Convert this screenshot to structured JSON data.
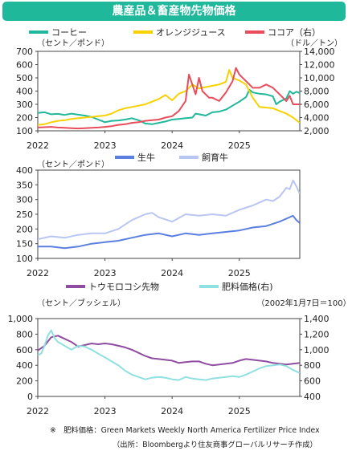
{
  "title": "農産品＆畜産物先物価格",
  "footnote": "※　肥料価格：Green Markets  Weekly North  America Fertilizer  Price Index",
  "source": "（出所：Bloombergより住友商事グローバルリサーチ作成）",
  "chart_data": [
    {
      "type": "line",
      "x_ticks": [
        "2022",
        "2023",
        "2024",
        "2025"
      ],
      "ylabel": "（セント／ポンド）",
      "y2label": "（ドル／トン）",
      "ylim": [
        100,
        700
      ],
      "y_ticks": [
        100,
        200,
        300,
        400,
        500,
        600,
        700
      ],
      "y2lim": [
        2000,
        14000
      ],
      "y2_ticks": [
        "2,000",
        "4,000",
        "6,000",
        "8,000",
        "10,000",
        "12,000",
        "14,000"
      ],
      "legend_position": "top",
      "grid": false,
      "series": [
        {
          "name": "コーヒー",
          "color": "#1fb89a",
          "axis": "left",
          "x": [
            2022.0,
            2022.1,
            2022.2,
            2022.3,
            2022.4,
            2022.5,
            2022.6,
            2022.7,
            2022.8,
            2022.9,
            2023.0,
            2023.1,
            2023.2,
            2023.3,
            2023.4,
            2023.5,
            2023.6,
            2023.7,
            2023.8,
            2023.9,
            2024.0,
            2024.1,
            2024.2,
            2024.3,
            2024.35,
            2024.4,
            2024.5,
            2024.6,
            2024.7,
            2024.8,
            2024.9,
            2025.0,
            2025.1,
            2025.15,
            2025.2,
            2025.3,
            2025.4,
            2025.5,
            2025.55,
            2025.6,
            2025.7,
            2025.75,
            2025.8,
            2025.85,
            2025.9
          ],
          "values": [
            235,
            240,
            225,
            228,
            220,
            230,
            222,
            215,
            205,
            185,
            165,
            175,
            178,
            185,
            195,
            180,
            155,
            150,
            160,
            170,
            185,
            190,
            195,
            200,
            230,
            225,
            215,
            240,
            245,
            260,
            290,
            320,
            355,
            410,
            390,
            380,
            375,
            360,
            300,
            320,
            345,
            400,
            380,
            395,
            385
          ]
        },
        {
          "name": "オレンジジュース",
          "color": "#f7d100",
          "axis": "left",
          "x": [
            2022.0,
            2022.1,
            2022.2,
            2022.3,
            2022.4,
            2022.5,
            2022.6,
            2022.7,
            2022.8,
            2022.9,
            2023.0,
            2023.1,
            2023.2,
            2023.3,
            2023.4,
            2023.5,
            2023.6,
            2023.7,
            2023.8,
            2023.9,
            2024.0,
            2024.1,
            2024.2,
            2024.3,
            2024.4,
            2024.5,
            2024.6,
            2024.7,
            2024.8,
            2024.85,
            2024.9,
            2025.0,
            2025.1,
            2025.2,
            2025.3,
            2025.4,
            2025.5,
            2025.6,
            2025.7,
            2025.8,
            2025.9
          ],
          "values": [
            145,
            150,
            165,
            175,
            180,
            190,
            195,
            200,
            205,
            210,
            215,
            230,
            255,
            270,
            280,
            290,
            300,
            320,
            340,
            370,
            330,
            380,
            400,
            450,
            420,
            430,
            440,
            450,
            470,
            560,
            500,
            480,
            450,
            350,
            280,
            275,
            270,
            250,
            230,
            200,
            160
          ]
        },
        {
          "name": "ココア（右）",
          "color": "#e84d5b",
          "axis": "right",
          "x": [
            2022.0,
            2022.1,
            2022.2,
            2022.3,
            2022.4,
            2022.5,
            2022.6,
            2022.7,
            2022.8,
            2022.9,
            2023.0,
            2023.1,
            2023.2,
            2023.3,
            2023.4,
            2023.5,
            2023.6,
            2023.7,
            2023.8,
            2023.9,
            2024.0,
            2024.1,
            2024.2,
            2024.25,
            2024.3,
            2024.35,
            2024.4,
            2024.45,
            2024.5,
            2024.55,
            2024.6,
            2024.7,
            2024.8,
            2024.9,
            2024.95,
            2025.0,
            2025.1,
            2025.2,
            2025.3,
            2025.4,
            2025.5,
            2025.6,
            2025.7,
            2025.75,
            2025.8,
            2025.9
          ],
          "values": [
            2500,
            2550,
            2600,
            2500,
            2450,
            2400,
            2350,
            2400,
            2450,
            2500,
            2600,
            2700,
            2900,
            3000,
            3200,
            3300,
            3500,
            3600,
            3700,
            4000,
            4200,
            5000,
            6500,
            10500,
            9000,
            7500,
            10000,
            8000,
            7500,
            7000,
            7000,
            6500,
            7800,
            9500,
            11500,
            10500,
            9500,
            8500,
            8500,
            9000,
            8500,
            7500,
            6500,
            7300,
            6000,
            6000
          ]
        }
      ]
    },
    {
      "type": "line",
      "x_ticks": [
        "2022",
        "2023",
        "2024",
        "2025"
      ],
      "ylabel": "（セント／ポンド）",
      "ylim": [
        100,
        400
      ],
      "y_ticks": [
        100,
        150,
        200,
        250,
        300,
        350,
        400
      ],
      "legend_position": "top",
      "grid": false,
      "series": [
        {
          "name": "生牛",
          "color": "#5a7fe0",
          "axis": "left",
          "x": [
            2022.0,
            2022.2,
            2022.4,
            2022.6,
            2022.8,
            2023.0,
            2023.2,
            2023.4,
            2023.6,
            2023.8,
            2024.0,
            2024.2,
            2024.4,
            2024.6,
            2024.8,
            2025.0,
            2025.2,
            2025.4,
            2025.6,
            2025.7,
            2025.8,
            2025.85,
            2025.9
          ],
          "values": [
            140,
            140,
            135,
            140,
            150,
            155,
            160,
            170,
            180,
            185,
            175,
            185,
            180,
            185,
            190,
            195,
            205,
            210,
            225,
            235,
            245,
            230,
            220
          ]
        },
        {
          "name": "飼育牛",
          "color": "#b9c6f2",
          "axis": "left",
          "x": [
            2022.0,
            2022.2,
            2022.4,
            2022.6,
            2022.8,
            2023.0,
            2023.2,
            2023.4,
            2023.6,
            2023.7,
            2023.8,
            2024.0,
            2024.2,
            2024.4,
            2024.6,
            2024.8,
            2025.0,
            2025.2,
            2025.4,
            2025.5,
            2025.6,
            2025.7,
            2025.75,
            2025.8,
            2025.85,
            2025.9
          ],
          "values": [
            165,
            175,
            170,
            180,
            185,
            185,
            200,
            230,
            250,
            255,
            240,
            225,
            250,
            245,
            250,
            245,
            265,
            280,
            300,
            295,
            310,
            340,
            335,
            365,
            345,
            320
          ]
        }
      ]
    },
    {
      "type": "line",
      "x_ticks": [
        "2022",
        "2023",
        "2024",
        "2025"
      ],
      "ylabel": "（セント／ブッシェル）",
      "y2label": "（2002年1月7日＝100）",
      "ylim": [
        0,
        1000
      ],
      "y_ticks": [
        "0",
        "200",
        "400",
        "600",
        "800",
        "1,000"
      ],
      "y2lim": [
        400,
        1400
      ],
      "y2_ticks": [
        "400",
        "600",
        "800",
        "1,000",
        "1,200",
        "1,400"
      ],
      "legend_position": "top",
      "grid": false,
      "series": [
        {
          "name": "トウモロコシ先物",
          "color": "#8e4da0",
          "axis": "left",
          "x": [
            2022.0,
            2022.1,
            2022.2,
            2022.3,
            2022.4,
            2022.5,
            2022.6,
            2022.7,
            2022.8,
            2022.9,
            2023.0,
            2023.1,
            2023.2,
            2023.3,
            2023.4,
            2023.5,
            2023.6,
            2023.7,
            2023.8,
            2023.9,
            2024.0,
            2024.1,
            2024.2,
            2024.3,
            2024.4,
            2024.5,
            2024.6,
            2024.7,
            2024.8,
            2024.9,
            2025.0,
            2025.1,
            2025.2,
            2025.3,
            2025.4,
            2025.5,
            2025.6,
            2025.7,
            2025.8,
            2025.9
          ],
          "values": [
            590,
            650,
            760,
            780,
            740,
            700,
            640,
            660,
            680,
            670,
            680,
            670,
            650,
            630,
            600,
            560,
            520,
            490,
            480,
            470,
            460,
            430,
            440,
            450,
            450,
            420,
            400,
            410,
            420,
            430,
            460,
            480,
            470,
            460,
            450,
            430,
            420,
            410,
            420,
            430
          ]
        },
        {
          "name": "肥料価格(右)",
          "color": "#8fe0e0",
          "axis": "right",
          "x": [
            2022.0,
            2022.05,
            2022.1,
            2022.15,
            2022.2,
            2022.25,
            2022.3,
            2022.4,
            2022.5,
            2022.6,
            2022.7,
            2022.8,
            2022.9,
            2023.0,
            2023.1,
            2023.2,
            2023.3,
            2023.4,
            2023.5,
            2023.6,
            2023.7,
            2023.8,
            2023.9,
            2024.0,
            2024.1,
            2024.2,
            2024.3,
            2024.4,
            2024.5,
            2024.6,
            2024.7,
            2024.8,
            2024.9,
            2025.0,
            2025.1,
            2025.2,
            2025.3,
            2025.4,
            2025.5,
            2025.6,
            2025.7,
            2025.8,
            2025.9
          ],
          "values": [
            930,
            950,
            1050,
            1180,
            1250,
            1150,
            1100,
            1050,
            1000,
            1050,
            1040,
            1000,
            950,
            900,
            850,
            800,
            730,
            680,
            650,
            620,
            640,
            650,
            640,
            620,
            610,
            650,
            630,
            620,
            610,
            630,
            640,
            650,
            660,
            650,
            680,
            720,
            760,
            790,
            800,
            810,
            790,
            740,
            700
          ]
        }
      ]
    }
  ]
}
